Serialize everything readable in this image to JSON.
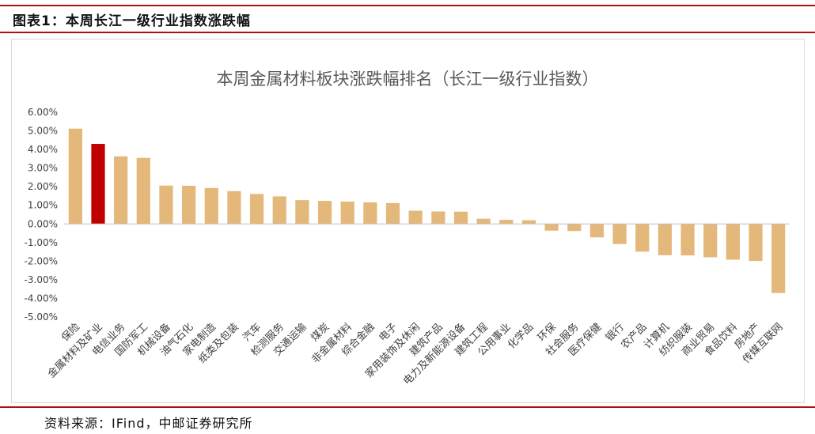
{
  "figure": {
    "label": "图表1：本周长江一级行业指数涨跌幅",
    "source": "资料来源：IFind，中邮证券研究所"
  },
  "chart_data": {
    "type": "bar",
    "title": "本周金属材料板块涨跌幅排名（长江一级行业指数）",
    "xlabel": "",
    "ylabel": "",
    "ylim": [
      -5,
      6
    ],
    "y_ticks": [
      "6.00%",
      "5.00%",
      "4.00%",
      "3.00%",
      "2.00%",
      "1.00%",
      "0.00%",
      "-1.00%",
      "-2.00%",
      "-3.00%",
      "-4.00%",
      "-5.00%"
    ],
    "grid": false,
    "legend": "none",
    "bar_color": "#E3B87A",
    "highlight_color": "#C00000",
    "highlight_category": "金属材料及矿业",
    "categories": [
      "保险",
      "金属材料及矿业",
      "电信业务",
      "国防军工",
      "机械设备",
      "油气石化",
      "家电制造",
      "纸类及包装",
      "汽车",
      "检测服务",
      "交通运输",
      "煤炭",
      "非金属材料",
      "综合金融",
      "电子",
      "家用装饰及休闲",
      "建筑产品",
      "电力及新能源设备",
      "建筑工程",
      "公用事业",
      "化学品",
      "环保",
      "社会服务",
      "医疗保健",
      "银行",
      "农产品",
      "计算机",
      "纺织服装",
      "商业贸易",
      "食品饮料",
      "房地产",
      "传媒互联网"
    ],
    "values": [
      5.12,
      4.3,
      3.63,
      3.55,
      2.06,
      2.05,
      1.93,
      1.76,
      1.61,
      1.48,
      1.28,
      1.24,
      1.2,
      1.16,
      1.12,
      0.71,
      0.67,
      0.66,
      0.28,
      0.22,
      0.2,
      -0.36,
      -0.38,
      -0.72,
      -1.08,
      -1.49,
      -1.68,
      -1.69,
      -1.79,
      -1.92,
      -1.99,
      -3.71
    ]
  }
}
